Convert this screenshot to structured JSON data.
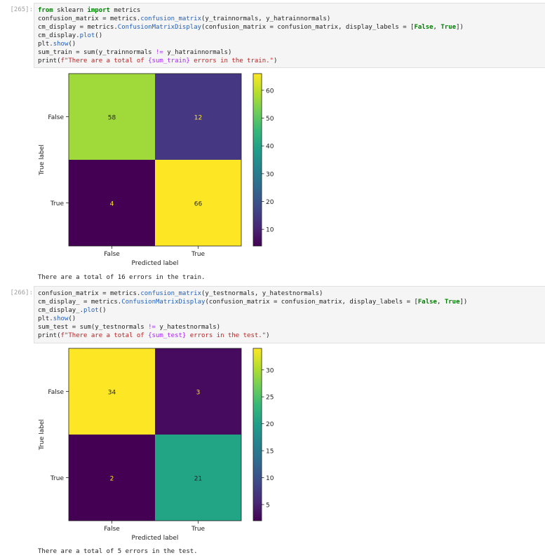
{
  "cells": [
    {
      "prompt": "[265]:",
      "code_lines": [
        [
          {
            "t": "from",
            "c": "kw"
          },
          {
            "t": " sklearn "
          },
          {
            "t": "import",
            "c": "kw"
          },
          {
            "t": " metrics"
          }
        ],
        [
          {
            "t": "confusion_matrix = metrics."
          },
          {
            "t": "confusion_matrix",
            "c": "fn"
          },
          {
            "t": "(y_trainnormals, y_hatrainnormals)"
          }
        ],
        [
          {
            "t": "cm_display = metrics."
          },
          {
            "t": "ConfusionMatrixDisplay",
            "c": "fn"
          },
          {
            "t": "(confusion_matrix = confusion_matrix, display_labels = ["
          },
          {
            "t": "False",
            "c": "kw"
          },
          {
            "t": ", "
          },
          {
            "t": "True",
            "c": "kw"
          },
          {
            "t": "])"
          }
        ],
        [
          {
            "t": "cm_display."
          },
          {
            "t": "plot",
            "c": "fn"
          },
          {
            "t": "()"
          }
        ],
        [
          {
            "t": "plt."
          },
          {
            "t": "show",
            "c": "fn"
          },
          {
            "t": "()"
          }
        ],
        [
          {
            "t": "sum_train = sum(y_trainnormals "
          },
          {
            "t": "!=",
            "c": "op"
          },
          {
            "t": " y_hatrainnormals)"
          }
        ],
        [
          {
            "t": "print("
          },
          {
            "t": "f\"There are a total of ",
            "c": "str"
          },
          {
            "t": "{sum_train}",
            "c": "op"
          },
          {
            "t": " errors in the train.\"",
            "c": "str"
          },
          {
            "t": ")"
          }
        ]
      ],
      "output_text": "There are a total of 16 errors in the train."
    },
    {
      "prompt": "[266]:",
      "code_lines": [
        [
          {
            "t": "confusion_matrix = metrics."
          },
          {
            "t": "confusion_matrix",
            "c": "fn"
          },
          {
            "t": "(y_testnormals, y_hatestnormals)"
          }
        ],
        [
          {
            "t": "cm_display_ = metrics."
          },
          {
            "t": "ConfusionMatrixDisplay",
            "c": "fn"
          },
          {
            "t": "(confusion_matrix = confusion_matrix, display_labels = ["
          },
          {
            "t": "False",
            "c": "kw"
          },
          {
            "t": ", "
          },
          {
            "t": "True",
            "c": "kw"
          },
          {
            "t": "])"
          }
        ],
        [
          {
            "t": "cm_display_."
          },
          {
            "t": "plot",
            "c": "fn"
          },
          {
            "t": "()"
          }
        ],
        [
          {
            "t": "plt."
          },
          {
            "t": "show",
            "c": "fn"
          },
          {
            "t": "()"
          }
        ],
        [
          {
            "t": "sum_test = sum(y_testnormals "
          },
          {
            "t": "!=",
            "c": "op"
          },
          {
            "t": " y_hatestnormals)"
          }
        ],
        [
          {
            "t": "print("
          },
          {
            "t": "f\"There are a total of ",
            "c": "str"
          },
          {
            "t": "{sum_test}",
            "c": "op"
          },
          {
            "t": " errors in the test.\"",
            "c": "str"
          },
          {
            "t": ")"
          }
        ]
      ],
      "output_text": "There are a total of 5 errors in the test."
    }
  ],
  "chart_data": [
    {
      "type": "heatmap",
      "xlabel": "Predicted label",
      "ylabel": "True label",
      "x_categories": [
        "False",
        "True"
      ],
      "y_categories": [
        "False",
        "True"
      ],
      "values": [
        [
          58,
          12
        ],
        [
          4,
          66
        ]
      ],
      "cell_colors": [
        [
          "#9fda3a",
          "#453781"
        ],
        [
          "#440154",
          "#fde725"
        ]
      ],
      "text_colors": [
        [
          "#222222",
          "#fde725"
        ],
        [
          "#fde725",
          "#222222"
        ]
      ],
      "colorbar": {
        "min": 4,
        "max": 66,
        "ticks": [
          10,
          20,
          30,
          40,
          50,
          60
        ]
      },
      "colormap": "viridis"
    },
    {
      "type": "heatmap",
      "xlabel": "Predicted label",
      "ylabel": "True label",
      "x_categories": [
        "False",
        "True"
      ],
      "y_categories": [
        "False",
        "True"
      ],
      "values": [
        [
          34,
          3
        ],
        [
          2,
          21
        ]
      ],
      "cell_colors": [
        [
          "#fde725",
          "#460b5e"
        ],
        [
          "#440154",
          "#21a585"
        ]
      ],
      "text_colors": [
        [
          "#222222",
          "#fde725"
        ],
        [
          "#fde725",
          "#222222"
        ]
      ],
      "colorbar": {
        "min": 2,
        "max": 34,
        "ticks": [
          5,
          10,
          15,
          20,
          25,
          30
        ]
      },
      "colormap": "viridis"
    }
  ]
}
